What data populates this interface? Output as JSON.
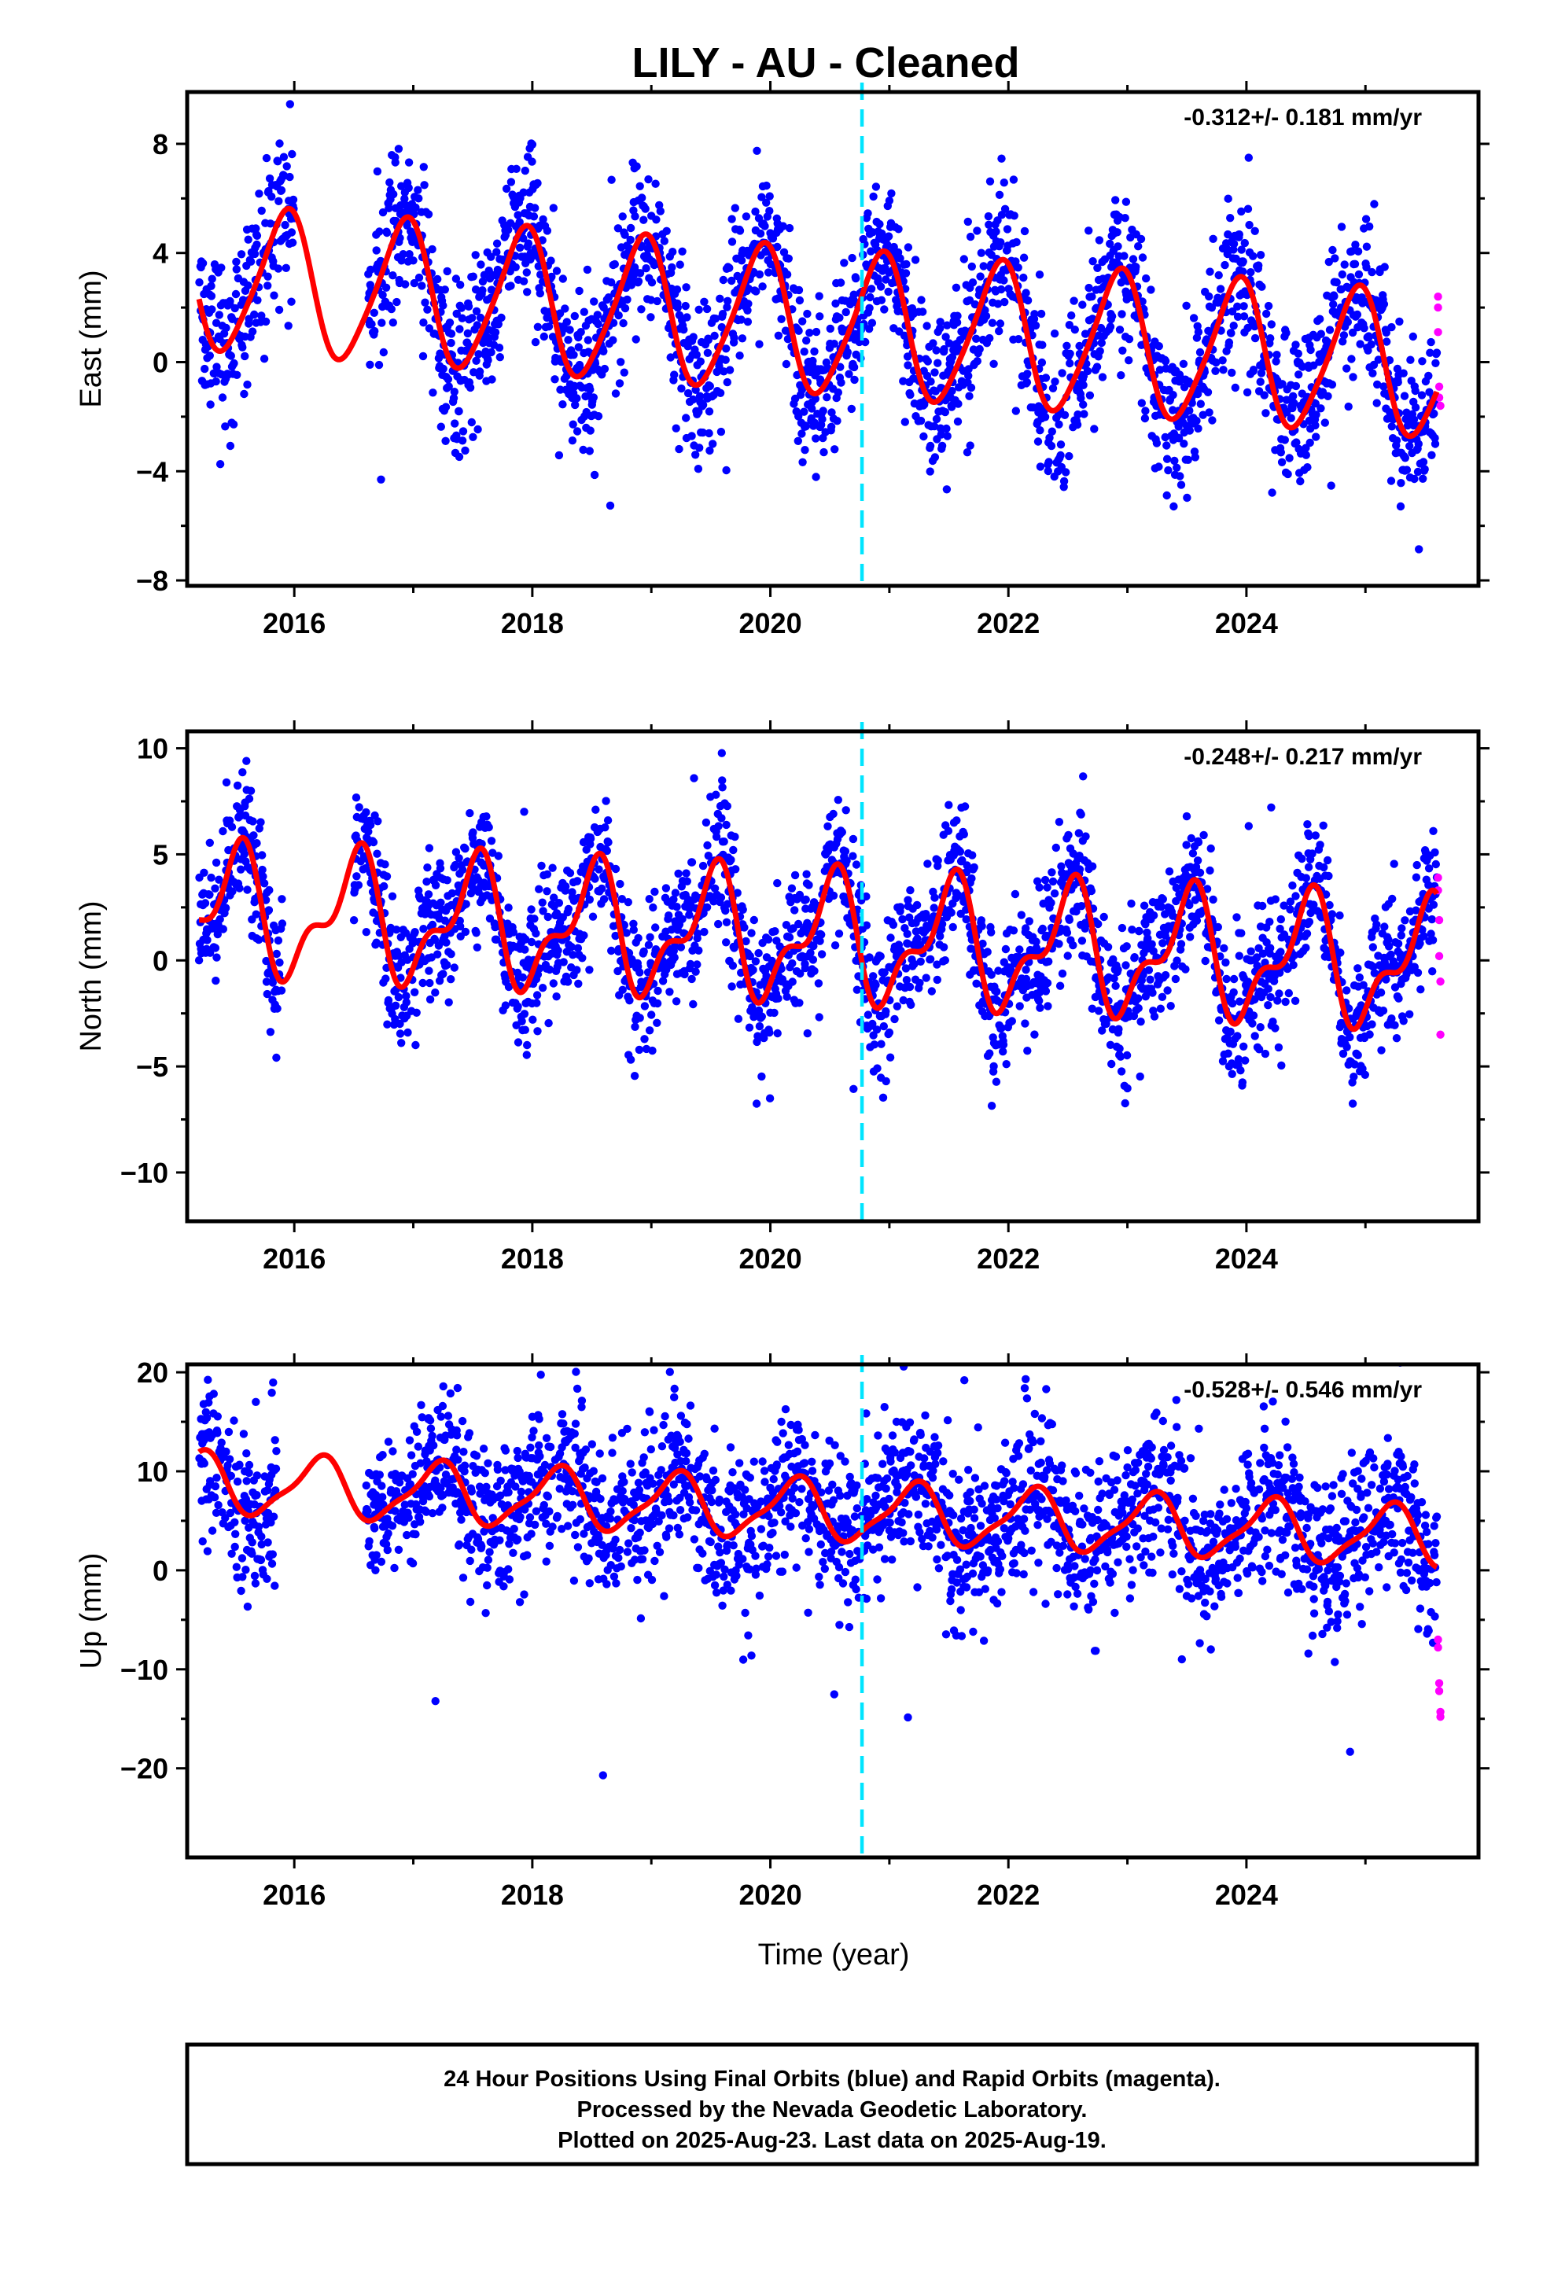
{
  "title": "LILY  - AU - Cleaned",
  "xlabel": "Time (year)",
  "footer": [
    "24 Hour Positions Using Final Orbits (blue) and Rapid Orbits (magenta).",
    "Processed by the Nevada Geodetic Laboratory.",
    "Plotted on 2025-Aug-23. Last data on 2025-Aug-19."
  ],
  "colors": {
    "final_orbits": "#0000ff",
    "rapid_orbits": "#ff00ff",
    "model": "#ff0000",
    "event_line": "#00e5ff",
    "frame": "#000000"
  },
  "chart_data": [
    {
      "type": "scatter",
      "ylabel": "East (mm)",
      "rate_label": "-0.312+/- 0.181 mm/yr",
      "xlim": [
        2015.1,
        2025.95
      ],
      "ylim": [
        -8.2,
        9.9
      ],
      "xticks": [
        2016,
        2018,
        2020,
        2022,
        2024
      ],
      "yticks": [
        8,
        4,
        0,
        -4,
        -8
      ],
      "event_line_x": 2020.77,
      "model": {
        "name": "",
        "mean": 1.4,
        "trend": -0.312,
        "annual_amp": 2.6,
        "annual_phase_peak": 0.92,
        "semiannual_amp": 0.4,
        "noise_sd": 1.5
      },
      "data_start": 2015.2,
      "data_end": 2025.6,
      "gap": [
        2016.0,
        2016.62
      ],
      "rapid_points": [
        {
          "x": 2025.61,
          "y": 2.4
        },
        {
          "x": 2025.61,
          "y": 2.0
        },
        {
          "x": 2025.61,
          "y": 1.1
        },
        {
          "x": 2025.62,
          "y": -0.9
        },
        {
          "x": 2025.62,
          "y": -1.3
        },
        {
          "x": 2025.63,
          "y": -1.6
        }
      ]
    },
    {
      "type": "scatter",
      "ylabel": "North (mm)",
      "rate_label": "-0.248+/- 0.217 mm/yr",
      "xlim": [
        2015.1,
        2025.95
      ],
      "ylim": [
        -12.3,
        10.8
      ],
      "xticks": [
        2016,
        2018,
        2020,
        2022,
        2024
      ],
      "yticks": [
        10,
        5,
        0,
        -5,
        -10
      ],
      "event_line_x": 2020.77,
      "model": {
        "name": "",
        "mean": 1.0,
        "trend": -0.248,
        "annual_amp": 2.6,
        "annual_phase_peak": 0.5,
        "semiannual_amp": 1.3,
        "noise_sd": 1.6
      },
      "data_start": 2015.2,
      "data_end": 2025.6,
      "gap": [
        2015.9,
        2016.5
      ],
      "rapid_points": [
        {
          "x": 2025.61,
          "y": 3.9
        },
        {
          "x": 2025.61,
          "y": 3.3
        },
        {
          "x": 2025.62,
          "y": 1.9
        },
        {
          "x": 2025.62,
          "y": 0.2
        },
        {
          "x": 2025.63,
          "y": -1.0
        },
        {
          "x": 2025.63,
          "y": -3.5
        }
      ]
    },
    {
      "type": "scatter",
      "ylabel": "Up (mm)",
      "rate_label": "-0.528+/- 0.546 mm/yr",
      "xlim": [
        2015.1,
        2025.95
      ],
      "ylim": [
        -29,
        20.8
      ],
      "xticks": [
        2016,
        2018,
        2020,
        2022,
        2024
      ],
      "yticks": [
        20,
        10,
        0,
        -10,
        -20
      ],
      "event_line_x": 2020.77,
      "model": {
        "name": "",
        "mean": 6.0,
        "trend": -0.528,
        "annual_amp": 2.9,
        "annual_phase_peak": 0.2,
        "semiannual_amp": 0.8,
        "noise_sd": 4.0
      },
      "data_start": 2015.2,
      "data_end": 2025.6,
      "gap": [
        2015.85,
        2016.6
      ],
      "rapid_points": [
        {
          "x": 2025.61,
          "y": -7.0
        },
        {
          "x": 2025.61,
          "y": -7.8
        },
        {
          "x": 2025.62,
          "y": -11.4
        },
        {
          "x": 2025.62,
          "y": -12.2
        },
        {
          "x": 2025.63,
          "y": -14.3
        },
        {
          "x": 2025.63,
          "y": -14.8
        }
      ]
    }
  ]
}
